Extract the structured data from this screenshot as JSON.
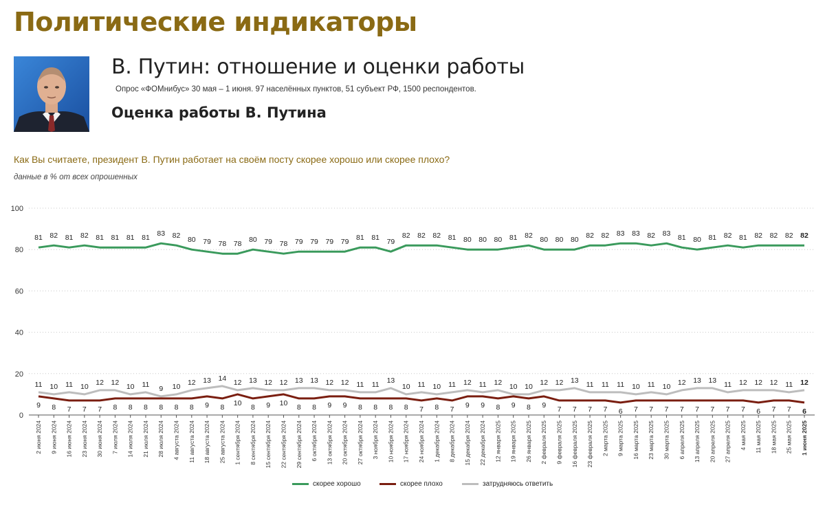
{
  "header": {
    "section_title": "Политические индикаторы",
    "title": "В. Путин: отношение и оценки работы",
    "survey_note": "Опрос «ФОМнибус» 30 мая – 1 июня. 97 населённых пунктов, 51 субъект РФ, 1500 респондентов.",
    "subtitle": "Оценка работы В. Путина",
    "question": "Как Вы считаете, президент В. Путин работает на своём посту скорее хорошо или скорее плохо?",
    "units_note": "данные в % от всех опрошенных"
  },
  "colors": {
    "good": "#3a9a5c",
    "bad": "#7a1e10",
    "unsure": "#bdbdbd",
    "accent": "#8a6a14"
  },
  "chart_data": {
    "type": "line",
    "x": [
      "2 июня 2024",
      "9 июня 2024",
      "16 июня 2024",
      "23 июня 2024",
      "30 июня 2024",
      "7 июля 2024",
      "14 июля 2024",
      "21 июля 2024",
      "28 июля 2024",
      "4 августа 2024",
      "11 августа 2024",
      "18 августа 2024",
      "25 августа 2024",
      "1 сентября 2024",
      "8 сентября 2024",
      "15 сентября 2024",
      "22 сентября 2024",
      "29 сентября 2024",
      "6 октября 2024",
      "13 октября 2024",
      "20 октября 2024",
      "27 октября 2024",
      "3 ноября 2024",
      "10 ноября 2024",
      "17 ноября 2024",
      "24 ноября 2024",
      "1 декабря 2024",
      "8 декабря 2024",
      "15 декабря 2024",
      "22 декабря 2024",
      "12 января 2025",
      "19 января 2025",
      "26 января 2025",
      "2 февраля 2025",
      "9 февраля 2025",
      "16 февраля 2025",
      "23 февраля 2025",
      "2 марта 2025",
      "9 марта 2025",
      "16 марта 2025",
      "23 марта 2025",
      "30 марта 2025",
      "6 апреля 2025",
      "13 апреля 2025",
      "20 апреля 2025",
      "27 апреля 2025",
      "4 мая 2025",
      "11 мая 2025",
      "18 мая 2025",
      "25 мая 2025",
      "1 июня 2025"
    ],
    "series": [
      {
        "name": "скорее хорошо",
        "color": "#3a9a5c",
        "values": [
          81,
          82,
          81,
          82,
          81,
          81,
          81,
          81,
          83,
          82,
          80,
          79,
          78,
          78,
          80,
          79,
          78,
          79,
          79,
          79,
          79,
          81,
          81,
          79,
          82,
          82,
          82,
          81,
          80,
          80,
          80,
          81,
          82,
          80,
          80,
          80,
          82,
          82,
          83,
          83,
          82,
          83,
          81,
          80,
          81,
          82,
          81,
          82,
          82,
          82,
          82
        ]
      },
      {
        "name": "скорее плохо",
        "color": "#7a1e10",
        "values": [
          9,
          8,
          7,
          7,
          7,
          8,
          8,
          8,
          8,
          8,
          8,
          9,
          8,
          10,
          8,
          9,
          10,
          8,
          8,
          9,
          9,
          8,
          8,
          8,
          8,
          7,
          8,
          7,
          9,
          9,
          8,
          9,
          8,
          9,
          7,
          7,
          7,
          7,
          6,
          7,
          7,
          7,
          7,
          7,
          7,
          7,
          7,
          6,
          7,
          7,
          6
        ]
      },
      {
        "name": "затрудняюсь ответить",
        "color": "#bdbdbd",
        "values": [
          11,
          10,
          11,
          10,
          12,
          12,
          10,
          11,
          9,
          10,
          12,
          13,
          14,
          12,
          13,
          12,
          12,
          13,
          13,
          12,
          12,
          11,
          11,
          13,
          10,
          11,
          10,
          11,
          12,
          11,
          12,
          10,
          10,
          12,
          12,
          13,
          11,
          11,
          11,
          10,
          11,
          10,
          12,
          13,
          13,
          11,
          12,
          12,
          12,
          11,
          12
        ]
      }
    ],
    "ylim": [
      0,
      100
    ],
    "yticks": [
      0,
      20,
      40,
      60,
      80,
      100
    ],
    "grid": "horizontal dotted",
    "legend_position": "bottom-center",
    "last_point_bold": true
  }
}
